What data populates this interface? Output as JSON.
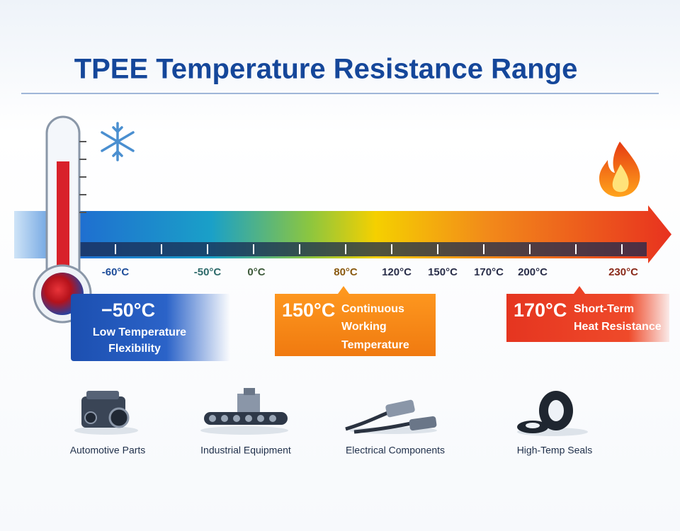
{
  "title": "TPEE Temperature Resistance Range",
  "scale_labels": [
    "-60°C",
    "-50°C",
    "0°C",
    "80°C",
    "120°C",
    "150°C",
    "170°C",
    "200°C",
    "230°C"
  ],
  "callouts": [
    {
      "value": "−50°C",
      "text_lines": [
        "Low Temperature",
        "Flexibility"
      ]
    },
    {
      "value": "150°C",
      "text_lines": [
        "Continuous",
        "Working",
        "Temperature"
      ]
    },
    {
      "value": "170°C",
      "text_lines": [
        "Short-Term",
        "Heat Resistance"
      ]
    }
  ],
  "applications": [
    "Automotive Parts",
    "Industrial Equipment",
    "Electrical Components",
    "High-Temp Seals"
  ]
}
